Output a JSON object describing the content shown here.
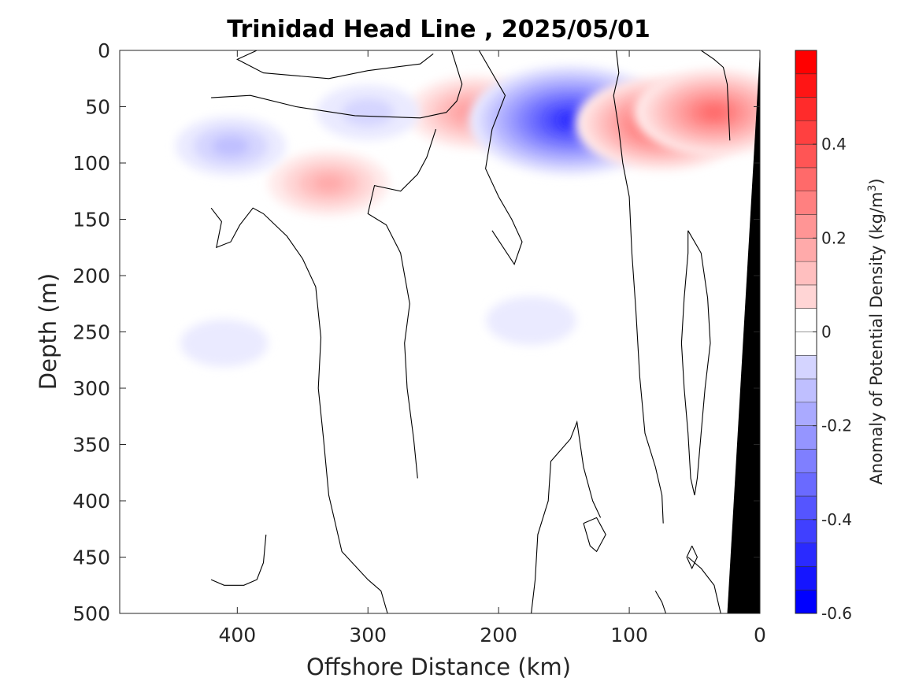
{
  "chart_data": {
    "type": "heatmap",
    "title": "Trinidad Head Line , 2025/05/01",
    "xlabel": "Offshore Distance (km)",
    "ylabel": "Depth (m)",
    "colorbar_label": "Anomaly of Potential Density (kg/m",
    "colorbar_label_sup": "3",
    "colorbar_label_close": ")",
    "x_axis": {
      "range": [
        490,
        0
      ],
      "reversed": true,
      "ticks": [
        400,
        300,
        200,
        100,
        0
      ],
      "tick_labels": [
        "400",
        "300",
        "200",
        "100",
        "0"
      ]
    },
    "y_axis": {
      "range": [
        0,
        500
      ],
      "reversed": true,
      "ticks": [
        0,
        50,
        100,
        150,
        200,
        250,
        300,
        350,
        400,
        450,
        500
      ],
      "tick_labels": [
        "0",
        "50",
        "100",
        "150",
        "200",
        "250",
        "300",
        "350",
        "400",
        "450",
        "500"
      ]
    },
    "colorbar": {
      "range": [
        -0.6,
        0.6
      ],
      "step": 0.05,
      "ticks": [
        0.4,
        0.2,
        0,
        -0.2,
        -0.4,
        -0.6
      ],
      "tick_labels": [
        "0.4",
        "0.2",
        "0",
        "-0.2",
        "-0.4",
        "-0.6"
      ],
      "positive_color": "#ff0000",
      "negative_color": "#0000ff"
    },
    "features": [
      {
        "kind": "positive_anomaly",
        "x": 330,
        "y": 118,
        "peak": 0.19
      },
      {
        "kind": "positive_anomaly",
        "x": 218,
        "y": 55,
        "peak": 0.25
      },
      {
        "kind": "negative_anomaly",
        "x": 145,
        "y": 62,
        "peak": -0.52
      },
      {
        "kind": "positive_anomaly",
        "x": 75,
        "y": 65,
        "peak": 0.4
      },
      {
        "kind": "positive_anomaly",
        "x": 35,
        "y": 55,
        "peak": 0.35
      },
      {
        "kind": "negative_anomaly",
        "x": 405,
        "y": 85,
        "peak": -0.15
      },
      {
        "kind": "negative_anomaly",
        "x": 300,
        "y": 55,
        "peak": -0.12
      },
      {
        "kind": "negative_anomaly",
        "x": 175,
        "y": 240,
        "peak": -0.07
      },
      {
        "kind": "negative_anomaly",
        "x": 410,
        "y": 260,
        "peak": -0.06
      }
    ],
    "data_extent_km": [
      0,
      420
    ],
    "bathymetry": {
      "color": "#000000",
      "surface_km": 0,
      "bottom_km": 25,
      "bottom_depth": 500
    },
    "zero_contour_color": "#000000"
  }
}
